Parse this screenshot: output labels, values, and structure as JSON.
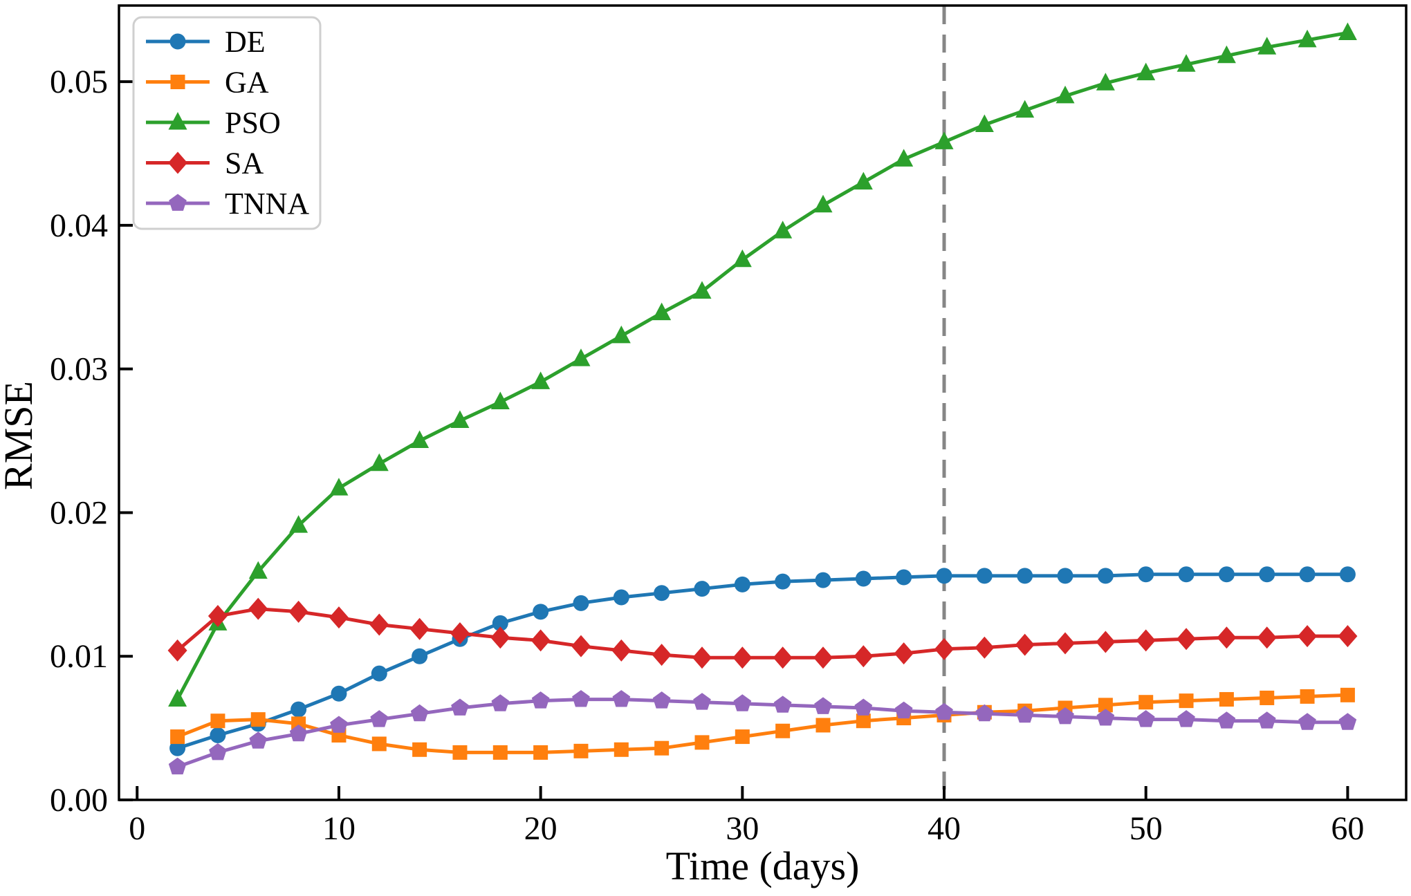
{
  "figure": {
    "background": "#ffffff",
    "frame_color": "#000000"
  },
  "chart_data": {
    "type": "line",
    "title": "",
    "xlabel": "Time (days)",
    "ylabel": "RMSE",
    "xlim": [
      -0.9,
      62.9
    ],
    "ylim": [
      0,
      0.0553
    ],
    "grid": false,
    "xticks": [
      0,
      10,
      20,
      30,
      40,
      50,
      60
    ],
    "ytick_labels": [
      "0.00",
      "0.01",
      "0.02",
      "0.03",
      "0.04",
      "0.05"
    ],
    "ytick_values": [
      0.0,
      0.01,
      0.02,
      0.03,
      0.04,
      0.05
    ],
    "vline": {
      "x": 40,
      "color": "#868686",
      "style": "dashed",
      "width": 5
    },
    "legend": {
      "position": "upper-left",
      "border_color": "#cfcfcf",
      "fill": "#ffffff"
    },
    "x": [
      2,
      4,
      6,
      8,
      10,
      12,
      14,
      16,
      18,
      20,
      22,
      24,
      26,
      28,
      30,
      32,
      34,
      36,
      38,
      40,
      42,
      44,
      46,
      48,
      50,
      52,
      54,
      56,
      58,
      60
    ],
    "series": [
      {
        "name": "DE",
        "color": "#1f77b4",
        "marker": "circle",
        "values": [
          0.0036,
          0.0045,
          0.0053,
          0.0063,
          0.0074,
          0.0088,
          0.01,
          0.0112,
          0.0123,
          0.0131,
          0.0137,
          0.0141,
          0.0144,
          0.0147,
          0.015,
          0.0152,
          0.0153,
          0.0154,
          0.0155,
          0.0156,
          0.0156,
          0.0156,
          0.0156,
          0.0156,
          0.0157,
          0.0157,
          0.0157,
          0.0157,
          0.0157,
          0.0157
        ]
      },
      {
        "name": "GA",
        "color": "#ff7f0e",
        "marker": "square",
        "values": [
          0.0044,
          0.0055,
          0.0056,
          0.0053,
          0.0045,
          0.0039,
          0.0035,
          0.0033,
          0.0033,
          0.0033,
          0.0034,
          0.0035,
          0.0036,
          0.004,
          0.0044,
          0.0048,
          0.0052,
          0.0055,
          0.0057,
          0.0059,
          0.0061,
          0.0062,
          0.0064,
          0.0066,
          0.0068,
          0.0069,
          0.007,
          0.0071,
          0.0072,
          0.0073
        ]
      },
      {
        "name": "PSO",
        "color": "#2ca02c",
        "marker": "triangle-up",
        "values": [
          0.007,
          0.0123,
          0.0159,
          0.0191,
          0.0217,
          0.0234,
          0.025,
          0.0264,
          0.0277,
          0.0291,
          0.0307,
          0.0323,
          0.0339,
          0.0354,
          0.0376,
          0.0396,
          0.0414,
          0.043,
          0.0446,
          0.0458,
          0.047,
          0.048,
          0.049,
          0.0499,
          0.0506,
          0.0512,
          0.0518,
          0.0524,
          0.0529,
          0.0534
        ]
      },
      {
        "name": "SA",
        "color": "#d62728",
        "marker": "diamond",
        "values": [
          0.0104,
          0.0128,
          0.0133,
          0.0131,
          0.0127,
          0.0122,
          0.0119,
          0.0116,
          0.0113,
          0.0111,
          0.0107,
          0.0104,
          0.0101,
          0.0099,
          0.0099,
          0.0099,
          0.0099,
          0.01,
          0.0102,
          0.0105,
          0.0106,
          0.0108,
          0.0109,
          0.011,
          0.0111,
          0.0112,
          0.0113,
          0.0113,
          0.0114,
          0.0114
        ]
      },
      {
        "name": "TNNA",
        "color": "#9467bd",
        "marker": "pentagon",
        "values": [
          0.0023,
          0.0033,
          0.0041,
          0.0046,
          0.0052,
          0.0056,
          0.006,
          0.0064,
          0.0067,
          0.0069,
          0.007,
          0.007,
          0.0069,
          0.0068,
          0.0067,
          0.0066,
          0.0065,
          0.0064,
          0.0062,
          0.0061,
          0.006,
          0.0059,
          0.0058,
          0.0057,
          0.0056,
          0.0056,
          0.0055,
          0.0055,
          0.0054,
          0.0054
        ]
      }
    ]
  }
}
